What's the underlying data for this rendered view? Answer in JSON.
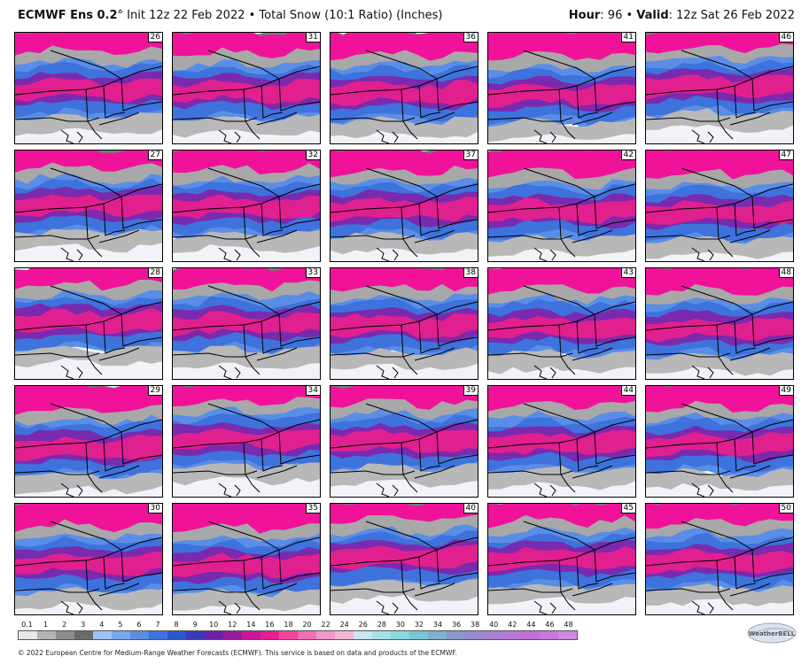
{
  "header": {
    "model": "ECMWF Ens 0.2",
    "degree": "°",
    "init": " Init 12z 22 Feb 2022",
    "bullet": " • ",
    "product": "Total Snow (10:1 Ratio) (Inches)",
    "hour_label": "Hour",
    "hour_value": ": 96",
    "valid_label": "Valid",
    "valid_value": ": 12z Sat 26 Feb 2022"
  },
  "members": [
    [
      "26",
      "31",
      "36",
      "41",
      "46"
    ],
    [
      "27",
      "32",
      "37",
      "42",
      "47"
    ],
    [
      "28",
      "33",
      "38",
      "43",
      "48"
    ],
    [
      "29",
      "34",
      "39",
      "44",
      "49"
    ],
    [
      "30",
      "35",
      "40",
      "45",
      "50"
    ]
  ],
  "legend": {
    "labels": [
      "0.1",
      "1",
      "2",
      "3",
      "4",
      "5",
      "6",
      "7",
      "8",
      "9",
      "10",
      "12",
      "14",
      "16",
      "18",
      "20",
      "22",
      "24",
      "26",
      "28",
      "30",
      "32",
      "34",
      "36",
      "38",
      "40",
      "42",
      "44",
      "46",
      "48"
    ],
    "colors": [
      "#e8e8e8",
      "#b4b4b4",
      "#8c8c8c",
      "#6a6a6a",
      "#9ec3f2",
      "#78a8ee",
      "#5a8ee6",
      "#3e72dc",
      "#2a58cc",
      "#3a3ab8",
      "#6a22a8",
      "#9a1a9e",
      "#c81896",
      "#e61e90",
      "#f2469e",
      "#f070b4",
      "#f098c8",
      "#f0b8d6",
      "#c8e8ee",
      "#a8e0e8",
      "#88d8e0",
      "#78c8d8",
      "#80b0d0",
      "#8898cc",
      "#9888cc",
      "#a880d0",
      "#b478d4",
      "#c070d8",
      "#c878dc",
      "#d088e0"
    ]
  },
  "footer": {
    "copyright": "© 2022 European Centre for Medium-Range Weather Forecasts (ECMWF). This service is based on data and products of the ECMWF."
  },
  "logo": {
    "text": "WeatherBELL"
  }
}
